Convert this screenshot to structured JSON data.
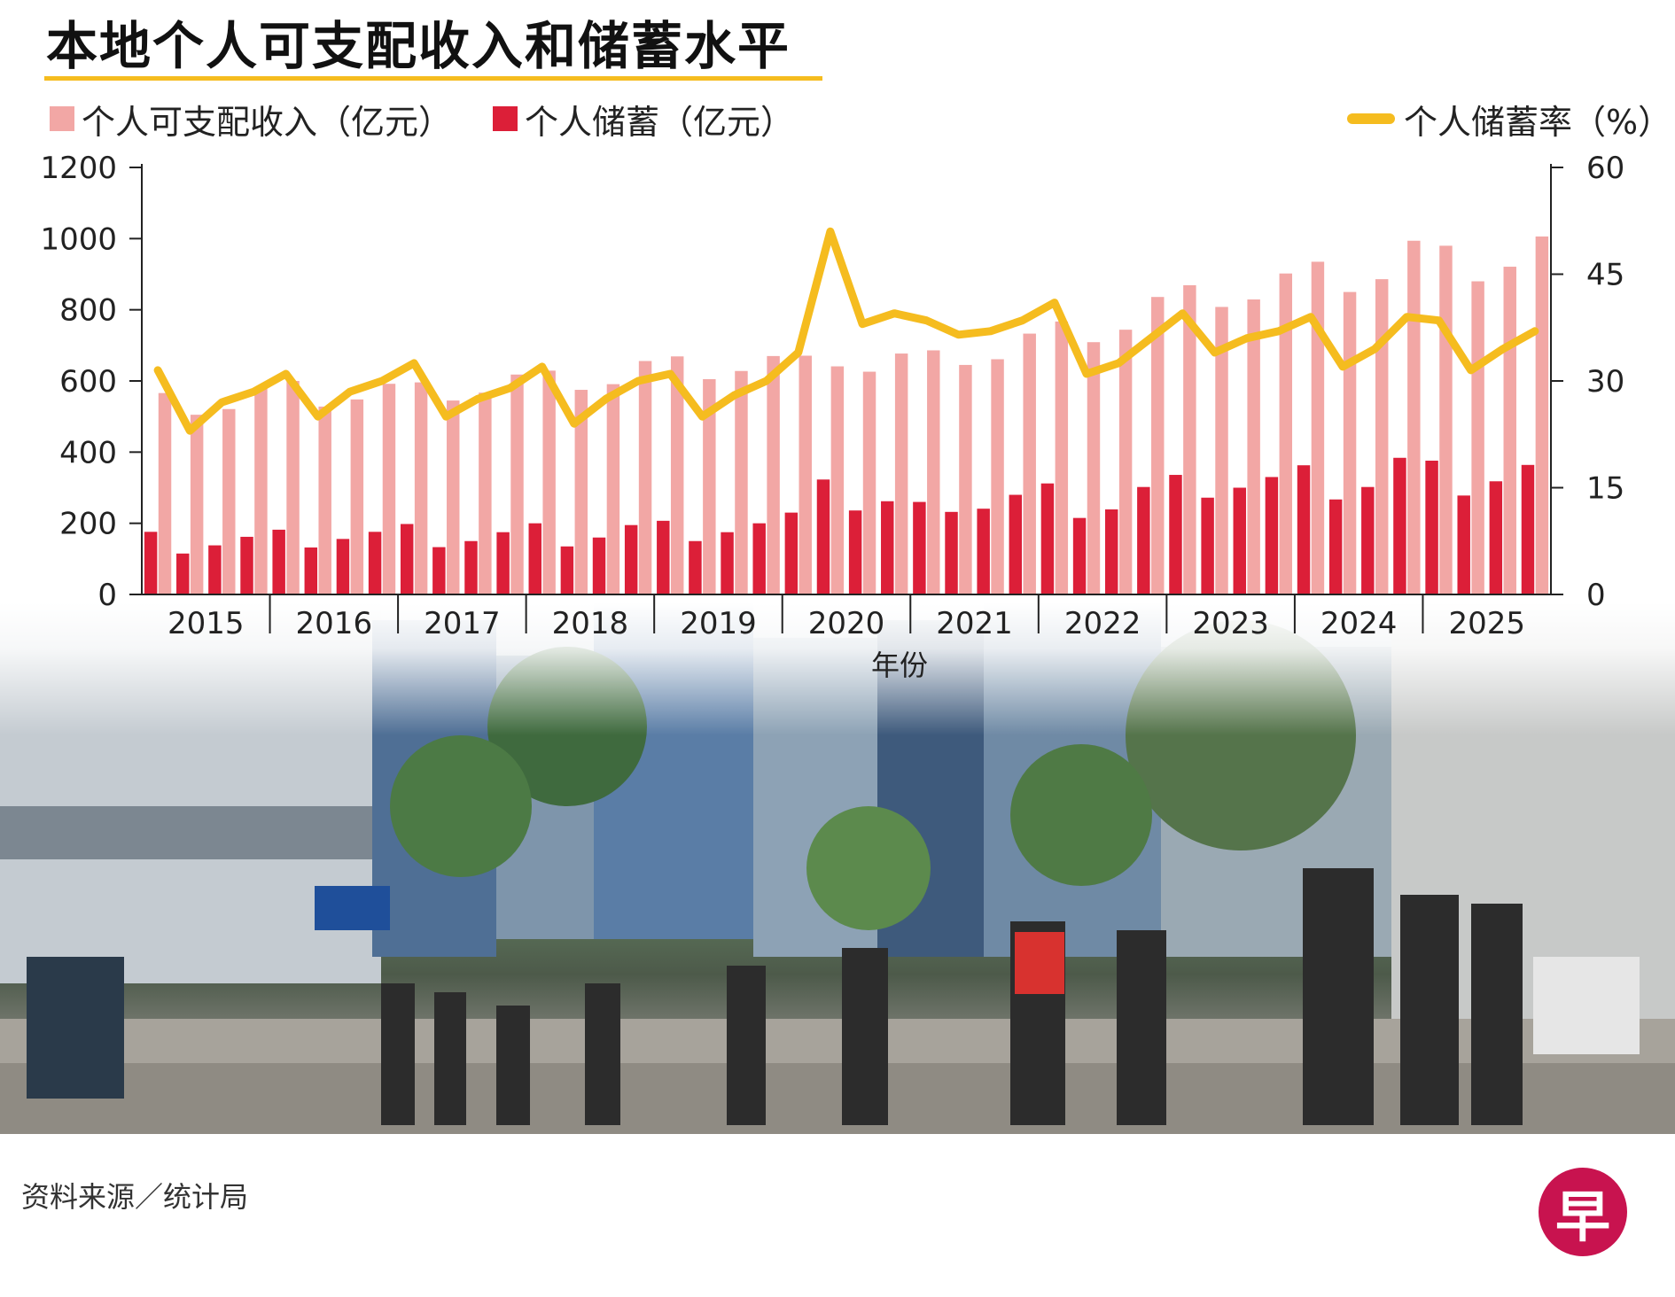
{
  "title": "本地个人可支配收入和储蓄水平",
  "legend": {
    "income": "个人可支配收入（亿元）",
    "savings": "个人储蓄（亿元）",
    "rate": "个人储蓄率（%）"
  },
  "source": "资料来源／统计局",
  "logo_text": "早",
  "colors": {
    "income": "#f2a7a5",
    "savings": "#dc1f38",
    "rate": "#f5bc1f",
    "accent": "#f5bc1f",
    "logo": "#c8134f"
  },
  "chart_data": {
    "type": "bar",
    "xlabel": "年份",
    "year_labels": [
      "2015",
      "2016",
      "2017",
      "2018",
      "2019",
      "2020",
      "2021",
      "2022",
      "2023",
      "2024",
      "2025"
    ],
    "quarters_per_year": 4,
    "left_axis": {
      "ylim": [
        0,
        1200
      ],
      "ticks": [
        0,
        200,
        400,
        600,
        800,
        1000,
        1200
      ]
    },
    "right_axis": {
      "ylim": [
        0,
        60
      ],
      "ticks": [
        0,
        15,
        30,
        45,
        60
      ]
    },
    "grid": false,
    "series": [
      {
        "name": "个人可支配收入（亿元）",
        "kind": "bar",
        "axis": "left",
        "values": [
          566,
          505,
          521,
          580,
          600,
          528,
          548,
          592,
          596,
          545,
          567,
          618,
          629,
          575,
          591,
          656,
          669,
          605,
          628,
          670,
          671,
          641,
          626,
          677,
          686,
          645,
          661,
          733,
          767,
          709,
          744,
          836,
          869,
          808,
          829,
          902,
          935,
          850,
          886,
          994,
          980,
          880,
          921,
          1006
        ]
      },
      {
        "name": "个人储蓄（亿元）",
        "kind": "bar",
        "axis": "left",
        "values": [
          176,
          115,
          138,
          162,
          182,
          132,
          156,
          176,
          198,
          133,
          150,
          175,
          200,
          135,
          160,
          195,
          207,
          150,
          175,
          200,
          230,
          323,
          236,
          262,
          260,
          232,
          241,
          280,
          312,
          215,
          239,
          302,
          336,
          272,
          300,
          330,
          363,
          267,
          302,
          384,
          376,
          278,
          318,
          364
        ]
      },
      {
        "name": "个人储蓄率（%）",
        "kind": "line",
        "axis": "right",
        "values": [
          31.5,
          23.0,
          27.0,
          28.5,
          31.0,
          25.0,
          28.5,
          30.0,
          32.5,
          25.0,
          27.5,
          29.0,
          32.0,
          24.0,
          27.5,
          30.0,
          31.0,
          25.0,
          28.0,
          30.0,
          34.0,
          51.0,
          38.0,
          39.5,
          38.5,
          36.5,
          37.0,
          38.5,
          41.0,
          31.0,
          32.5,
          36.0,
          39.5,
          34.0,
          36.0,
          37.0,
          39.0,
          32.0,
          34.5,
          39.0,
          38.5,
          31.5,
          34.5,
          37.0
        ]
      }
    ]
  }
}
